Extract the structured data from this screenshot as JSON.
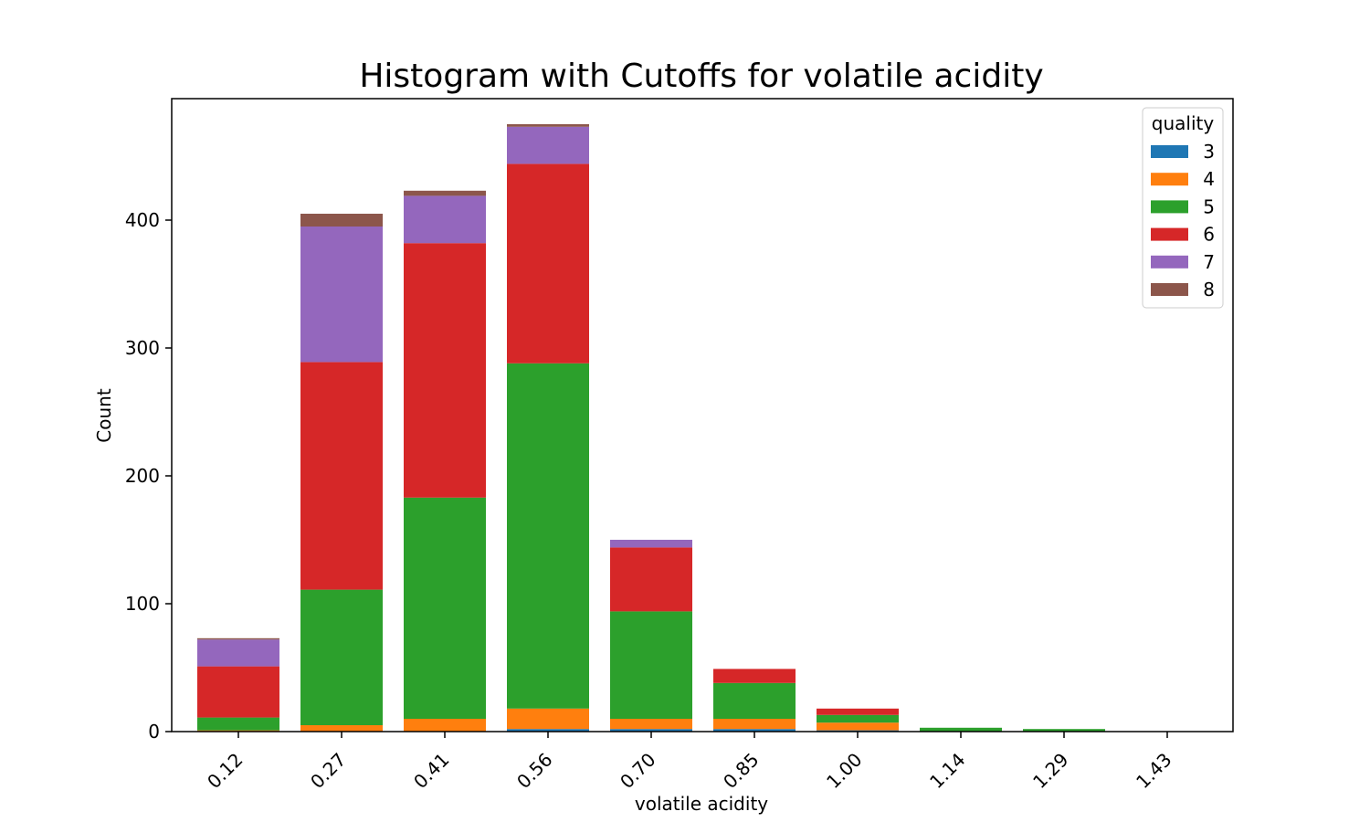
{
  "chart_data": {
    "type": "bar",
    "stacked": true,
    "title": "Histogram with Cutoffs for volatile acidity",
    "xlabel": "volatile acidity",
    "ylabel": "Count",
    "ylim": [
      0,
      495
    ],
    "yticks": [
      0,
      100,
      200,
      300,
      400
    ],
    "categories": [
      "0.12",
      "0.27",
      "0.41",
      "0.56",
      "0.70",
      "0.85",
      "1.00",
      "1.14",
      "1.29",
      "1.43"
    ],
    "legend": {
      "title": "quality",
      "position": "top-right"
    },
    "series": [
      {
        "name": "3",
        "color": "#1f77b4",
        "values": [
          0,
          0,
          0,
          2,
          2,
          2,
          1,
          0,
          0,
          0
        ]
      },
      {
        "name": "4",
        "color": "#ff7f0e",
        "values": [
          1,
          5,
          10,
          16,
          8,
          8,
          6,
          0,
          0,
          0
        ]
      },
      {
        "name": "5",
        "color": "#2ca02c",
        "values": [
          10,
          106,
          173,
          270,
          84,
          28,
          6,
          3,
          2,
          0
        ]
      },
      {
        "name": "6",
        "color": "#d62728",
        "values": [
          40,
          178,
          199,
          156,
          50,
          11,
          5,
          0,
          0,
          0
        ]
      },
      {
        "name": "7",
        "color": "#9467bd",
        "values": [
          21,
          106,
          37,
          29,
          6,
          0,
          0,
          0,
          0,
          0
        ]
      },
      {
        "name": "8",
        "color": "#8c564b",
        "values": [
          1,
          10,
          4,
          2,
          0,
          0,
          0,
          0,
          0,
          0
        ]
      }
    ]
  }
}
